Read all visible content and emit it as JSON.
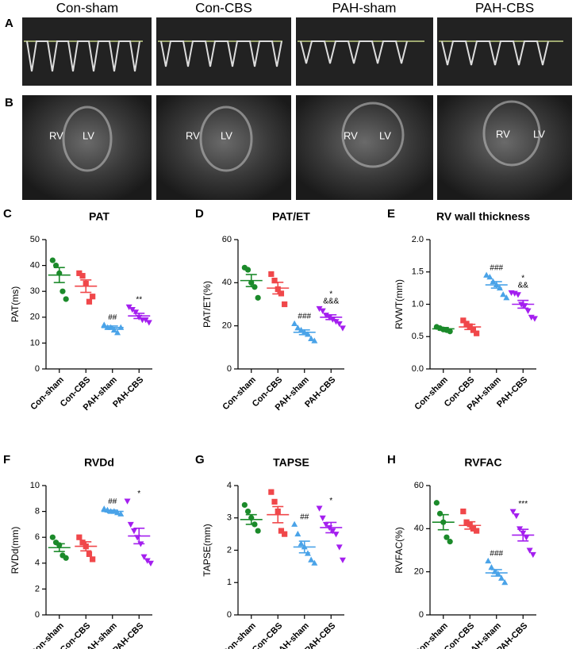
{
  "figure": {
    "panel_letters": [
      "A",
      "B"
    ],
    "columns": [
      "Con-sham",
      "Con-CBS",
      "PAH-sham",
      "PAH-CBS"
    ],
    "chamber_labels": [
      "RV",
      "LV"
    ]
  },
  "chart_data": [
    {
      "type": "dotplot",
      "panel": "C",
      "title": "PAT",
      "y_label": "PAT(ms)",
      "categories": [
        "Con-sham",
        "Con-CBS",
        "PAH-sham",
        "PAH-CBS"
      ],
      "ylim": [
        0,
        50
      ],
      "yticks": [
        0,
        10,
        20,
        30,
        40,
        50
      ],
      "groups": [
        {
          "color": "#1b8a2a",
          "marker": "circle",
          "points": [
            42,
            40,
            37,
            30,
            27
          ],
          "mean": 36.3,
          "sem": 2.9
        },
        {
          "color": "#f0474a",
          "marker": "square",
          "points": [
            37,
            36,
            33,
            26,
            28
          ],
          "mean": 32,
          "sem": 2.4
        },
        {
          "color": "#4aa3e8",
          "marker": "triangle-up",
          "points": [
            17,
            16,
            16,
            15,
            14,
            16
          ],
          "mean": 16,
          "sem": 0.6,
          "annotation": [
            "##"
          ]
        },
        {
          "color": "#a41fef",
          "marker": "triangle-down",
          "points": [
            24,
            23,
            22,
            20,
            19,
            19,
            18
          ],
          "mean": 20.5,
          "sem": 1,
          "annotation": [
            "**"
          ]
        }
      ]
    },
    {
      "type": "dotplot",
      "panel": "D",
      "title": "PAT/ET",
      "y_label": "PAT/ET(%)",
      "categories": [
        "Con-sham",
        "Con-CBS",
        "PAH-sham",
        "PAH-CBS"
      ],
      "ylim": [
        0,
        60
      ],
      "yticks": [
        0,
        20,
        40,
        60
      ],
      "groups": [
        {
          "color": "#1b8a2a",
          "marker": "circle",
          "points": [
            47,
            46,
            40,
            38,
            33
          ],
          "mean": 41,
          "sem": 2.8
        },
        {
          "color": "#f0474a",
          "marker": "square",
          "points": [
            44,
            41,
            37,
            35,
            30
          ],
          "mean": 37.5,
          "sem": 2.7
        },
        {
          "color": "#4aa3e8",
          "marker": "triangle-up",
          "points": [
            21,
            19,
            18,
            17,
            16,
            14,
            13
          ],
          "mean": 17,
          "sem": 1.1,
          "annotation": [
            "###"
          ]
        },
        {
          "color": "#a41fef",
          "marker": "triangle-down",
          "points": [
            28,
            27,
            25,
            24,
            23,
            22,
            21,
            19
          ],
          "mean": 24,
          "sem": 1.1,
          "annotation": [
            "*",
            "&&&"
          ]
        }
      ]
    },
    {
      "type": "dotplot",
      "panel": "E",
      "title": "RV wall thickness",
      "y_label": "RVWT(mm)",
      "categories": [
        "Con-sham",
        "Con-CBS",
        "PAH-sham",
        "PAH-CBS"
      ],
      "ylim": [
        0,
        2
      ],
      "yticks": [
        {
          "value": 0,
          "label": "0.0"
        },
        0.5,
        {
          "value": 1,
          "label": "1.0"
        },
        1.5,
        {
          "value": 2,
          "label": "2.0"
        }
      ],
      "groups": [
        {
          "color": "#1b8a2a",
          "marker": "circle",
          "points": [
            0.65,
            0.63,
            0.61,
            0.6,
            0.58
          ],
          "mean": 0.62,
          "sem": 0.02
        },
        {
          "color": "#f0474a",
          "marker": "square",
          "points": [
            0.75,
            0.7,
            0.66,
            0.6,
            0.55
          ],
          "mean": 0.65,
          "sem": 0.04
        },
        {
          "color": "#4aa3e8",
          "marker": "triangle-up",
          "points": [
            1.45,
            1.42,
            1.35,
            1.3,
            1.25,
            1.15,
            1.1
          ],
          "mean": 1.3,
          "sem": 0.05,
          "annotation": [
            "###"
          ]
        },
        {
          "color": "#a41fef",
          "marker": "triangle-down",
          "points": [
            1.18,
            1.17,
            1.15,
            1,
            0.98,
            0.9,
            0.8,
            0.78
          ],
          "mean": 1,
          "sem": 0.06,
          "annotation": [
            "*",
            "&&"
          ]
        }
      ]
    },
    {
      "type": "dotplot",
      "panel": "F",
      "title": "RVDd",
      "y_label": "RVDd(mm)",
      "categories": [
        "Con-sham",
        "Con-CBS",
        "PAH-sham",
        "PAH-CBS"
      ],
      "ylim": [
        0,
        10
      ],
      "yticks": [
        0,
        2,
        4,
        6,
        8,
        10
      ],
      "groups": [
        {
          "color": "#1b8a2a",
          "marker": "circle",
          "points": [
            6,
            5.6,
            5.4,
            4.6,
            4.4
          ],
          "mean": 5.2,
          "sem": 0.3
        },
        {
          "color": "#f0474a",
          "marker": "square",
          "points": [
            6,
            5.6,
            5.3,
            4.7,
            4.3
          ],
          "mean": 5.3,
          "sem": 0.35
        },
        {
          "color": "#4aa3e8",
          "marker": "triangle-up",
          "points": [
            8.2,
            8.1,
            8,
            8,
            7.9,
            7.8
          ],
          "mean": 8,
          "sem": 0.1,
          "annotation": [
            "##"
          ]
        },
        {
          "color": "#a41fef",
          "marker": "triangle-down",
          "points": [
            8.8,
            7,
            6.5,
            6,
            5.5,
            4.5,
            4.2,
            4
          ],
          "mean": 6.1,
          "sem": 0.6,
          "annotation": [
            "*"
          ]
        }
      ]
    },
    {
      "type": "dotplot",
      "panel": "G",
      "title": "TAPSE",
      "y_label": "TAPSE(mm)",
      "categories": [
        "Con-sham",
        "Con-CBS",
        "PAH-sham",
        "PAH-CBS"
      ],
      "ylim": [
        0,
        4
      ],
      "yticks": [
        0,
        1,
        2,
        3,
        4
      ],
      "groups": [
        {
          "color": "#1b8a2a",
          "marker": "circle",
          "points": [
            3.4,
            3.2,
            3,
            2.8,
            2.6
          ],
          "mean": 2.95,
          "sem": 0.15
        },
        {
          "color": "#f0474a",
          "marker": "square",
          "points": [
            3.8,
            3.5,
            3.2,
            2.6,
            2.5
          ],
          "mean": 3.1,
          "sem": 0.25
        },
        {
          "color": "#4aa3e8",
          "marker": "triangle-up",
          "points": [
            2.8,
            2.5,
            2.2,
            2.1,
            1.9,
            1.7,
            1.6
          ],
          "mean": 2.1,
          "sem": 0.18,
          "annotation": [
            "##"
          ]
        },
        {
          "color": "#a41fef",
          "marker": "triangle-down",
          "points": [
            3.3,
            3,
            2.8,
            2.7,
            2.6,
            2.5,
            2.1,
            1.7
          ],
          "mean": 2.7,
          "sem": 0.16,
          "annotation": [
            "*"
          ]
        }
      ]
    },
    {
      "type": "dotplot",
      "panel": "H",
      "title": "RVFAC",
      "y_label": "RVFAC(%)",
      "categories": [
        "Con-sham",
        "Con-CBS",
        "PAH-sham",
        "PAH-CBS"
      ],
      "ylim": [
        0,
        60
      ],
      "yticks": [
        0,
        20,
        40,
        60
      ],
      "groups": [
        {
          "color": "#1b8a2a",
          "marker": "circle",
          "points": [
            52,
            47,
            43,
            36,
            34
          ],
          "mean": 43,
          "sem": 3.5
        },
        {
          "color": "#f0474a",
          "marker": "square",
          "points": [
            48,
            43,
            42,
            40,
            39
          ],
          "mean": 41.5,
          "sem": 1.7
        },
        {
          "color": "#4aa3e8",
          "marker": "triangle-up",
          "points": [
            25,
            22,
            20,
            19,
            17,
            15
          ],
          "mean": 19.5,
          "sem": 1.5,
          "annotation": [
            "###"
          ]
        },
        {
          "color": "#a41fef",
          "marker": "triangle-down",
          "points": [
            48,
            46,
            40,
            38,
            36,
            30,
            28
          ],
          "mean": 37,
          "sem": 2.7,
          "annotation": [
            "***"
          ]
        }
      ]
    }
  ]
}
